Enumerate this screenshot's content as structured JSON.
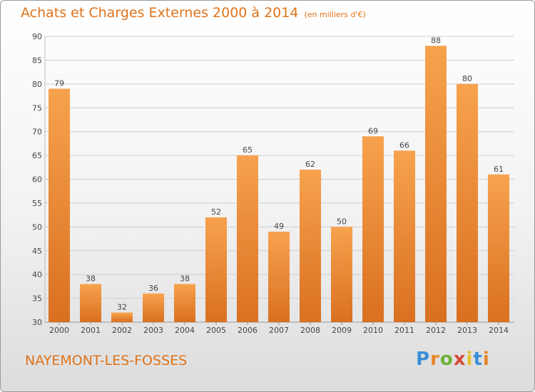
{
  "header": {
    "title": "Achats et Charges Externes 2000 à 2014",
    "subtitle": "(en milliers d'€)"
  },
  "footer": {
    "place": "NAYEMONT-LES-FOSSES",
    "logo": {
      "text": "Proxiti",
      "letter_colors": [
        "#3a8fd6",
        "#e8862a",
        "#6ab23a",
        "#d64a3a",
        "#e8c12a",
        "#3a8fd6",
        "#e8862a"
      ]
    }
  },
  "colors": {
    "title": "#e0731a",
    "bar_top": "#f7a24e",
    "bar_bottom": "#d9701f",
    "grid": "#cfcfcf",
    "axis_text": "#444444"
  },
  "chart_data": {
    "type": "bar",
    "title": "Achats et Charges Externes 2000 à 2014",
    "subtitle": "(en milliers d'€)",
    "categories": [
      "2000",
      "2001",
      "2002",
      "2003",
      "2004",
      "2005",
      "2006",
      "2007",
      "2008",
      "2009",
      "2010",
      "2011",
      "2012",
      "2013",
      "2014"
    ],
    "values": [
      79,
      38,
      32,
      36,
      38,
      52,
      65,
      49,
      62,
      50,
      69,
      66,
      88,
      80,
      61
    ],
    "ylim": [
      30,
      90
    ],
    "yticks": [
      30,
      35,
      40,
      45,
      50,
      55,
      60,
      65,
      70,
      75,
      80,
      85,
      90
    ],
    "grid": true,
    "data_labels": true,
    "legend": "none"
  }
}
